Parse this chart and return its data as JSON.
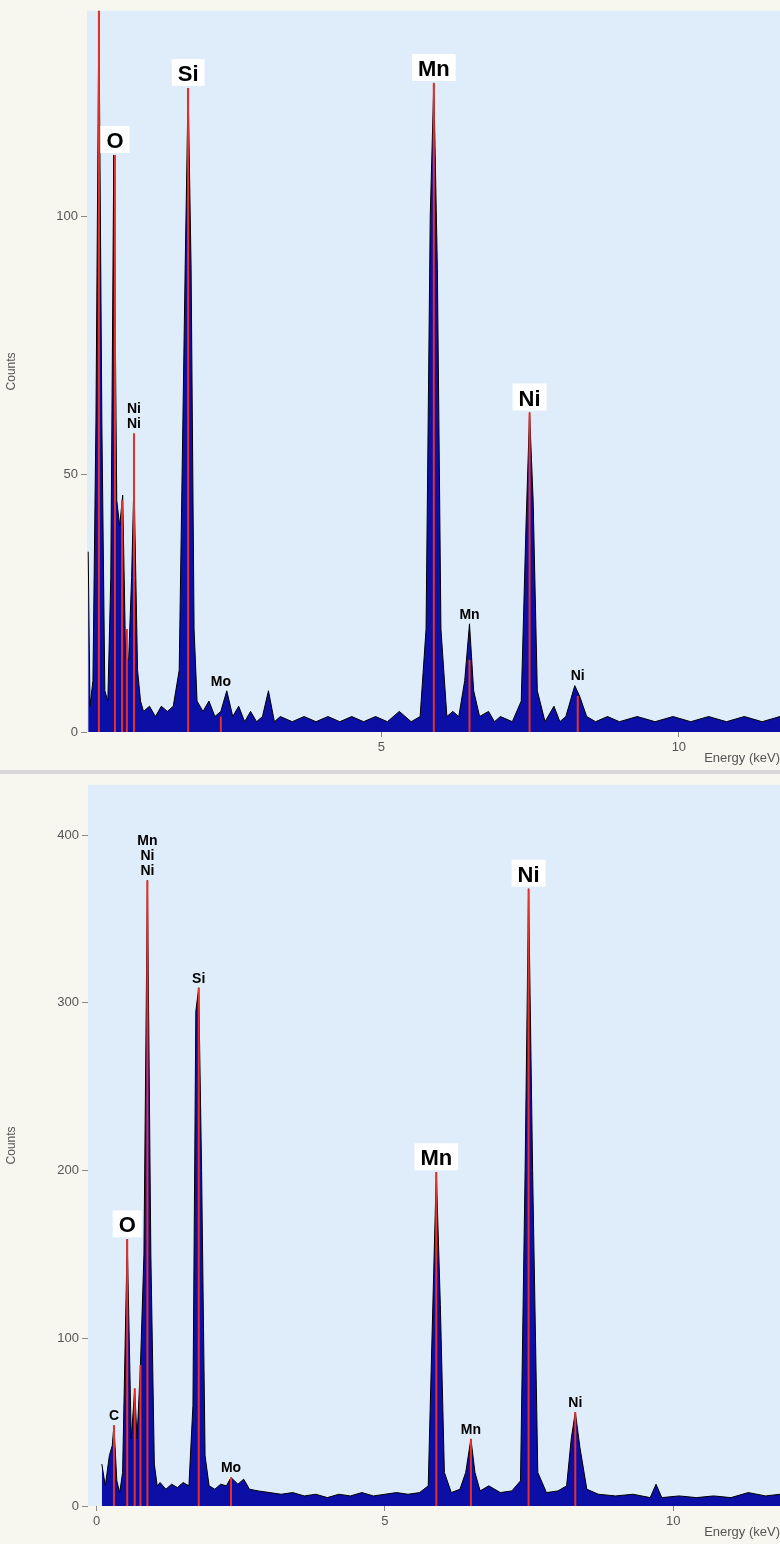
{
  "chart_data": [
    {
      "type": "area",
      "xlabel": "Energy (keV)",
      "ylabel": "Counts",
      "xlim": [
        0.05,
        11.7
      ],
      "ylim": [
        0,
        140
      ],
      "xticks": [
        5,
        10
      ],
      "yticks": [
        0,
        50,
        100
      ],
      "grid": false,
      "legend": false,
      "series": [
        {
          "color": "#0b0fa6",
          "x": [
            0.07,
            0.1,
            0.15,
            0.2,
            0.25,
            0.3,
            0.35,
            0.4,
            0.45,
            0.5,
            0.55,
            0.6,
            0.65,
            0.7,
            0.75,
            0.8,
            0.84,
            0.9,
            0.95,
            1.0,
            1.1,
            1.2,
            1.3,
            1.4,
            1.5,
            1.6,
            1.7,
            1.75,
            1.8,
            1.85,
            1.9,
            2.0,
            2.1,
            2.2,
            2.3,
            2.4,
            2.5,
            2.6,
            2.7,
            2.8,
            2.9,
            3.0,
            3.1,
            3.2,
            3.3,
            3.5,
            3.7,
            3.9,
            4.1,
            4.3,
            4.5,
            4.7,
            4.9,
            5.1,
            5.3,
            5.5,
            5.65,
            5.75,
            5.82,
            5.88,
            5.94,
            6.0,
            6.1,
            6.2,
            6.3,
            6.4,
            6.48,
            6.55,
            6.65,
            6.8,
            6.9,
            7.0,
            7.2,
            7.35,
            7.43,
            7.49,
            7.55,
            7.62,
            7.75,
            7.9,
            8.0,
            8.1,
            8.25,
            8.33,
            8.45,
            8.6,
            8.8,
            9.0,
            9.3,
            9.6,
            9.9,
            10.2,
            10.5,
            10.8,
            11.1,
            11.4,
            11.7
          ],
          "values": [
            35,
            5,
            10,
            60,
            140,
            60,
            8,
            6,
            30,
            112,
            45,
            40,
            46,
            14,
            14,
            30,
            49,
            12,
            6,
            4,
            5,
            3,
            5,
            4,
            5,
            12,
            90,
            125,
            90,
            20,
            6,
            4,
            6,
            3,
            4,
            8,
            3,
            5,
            2,
            4,
            2,
            3,
            8,
            2,
            3,
            2,
            3,
            2,
            3,
            2,
            3,
            2,
            3,
            2,
            4,
            2,
            3,
            20,
            100,
            126,
            90,
            20,
            3,
            4,
            3,
            10,
            21,
            8,
            3,
            4,
            2,
            3,
            2,
            6,
            40,
            62,
            45,
            8,
            2,
            5,
            2,
            3,
            9,
            7,
            3,
            2,
            3,
            2,
            3,
            2,
            3,
            2,
            3,
            2,
            3,
            2,
            3
          ]
        },
        {
          "type": "bar",
          "color": "#e8302a",
          "x": [
            0.25,
            0.52,
            0.64,
            0.72,
            0.84,
            1.75,
            2.3,
            5.88,
            6.48,
            7.49,
            8.3
          ],
          "values": [
            140,
            112,
            45,
            20,
            58,
            125,
            3,
            126,
            14,
            62,
            7
          ]
        }
      ],
      "annotations": [
        {
          "text": "O",
          "x": 0.52,
          "y": 112
        },
        {
          "text": "Ni\nNi",
          "x": 0.84,
          "y": 58
        },
        {
          "text": "Si",
          "x": 1.75,
          "y": 125
        },
        {
          "text": "Mo",
          "x": 2.3,
          "y": 3
        },
        {
          "text": "Mn",
          "x": 5.88,
          "y": 126
        },
        {
          "text": "Mn",
          "x": 6.48,
          "y": 14
        },
        {
          "text": "Ni",
          "x": 7.49,
          "y": 62
        },
        {
          "text": "Ni",
          "x": 8.3,
          "y": 7
        }
      ]
    },
    {
      "type": "area",
      "xlabel": "Energy (keV)",
      "ylabel": "Counts",
      "xlim": [
        -0.15,
        11.85
      ],
      "ylim": [
        0,
        430
      ],
      "xticks": [
        0,
        5,
        10
      ],
      "yticks": [
        0,
        100,
        200,
        300,
        400
      ],
      "grid": false,
      "legend": false,
      "series": [
        {
          "color": "#0b0fa6",
          "x": [
            0.09,
            0.15,
            0.22,
            0.27,
            0.3,
            0.35,
            0.4,
            0.45,
            0.53,
            0.6,
            0.66,
            0.7,
            0.76,
            0.82,
            0.88,
            0.94,
            1.0,
            1.05,
            1.1,
            1.2,
            1.3,
            1.4,
            1.5,
            1.6,
            1.67,
            1.72,
            1.77,
            1.82,
            1.88,
            1.95,
            2.05,
            2.15,
            2.25,
            2.33,
            2.45,
            2.55,
            2.65,
            2.8,
            3.0,
            3.2,
            3.4,
            3.6,
            3.8,
            4.0,
            4.2,
            4.4,
            4.6,
            4.8,
            5.0,
            5.2,
            5.4,
            5.6,
            5.75,
            5.8,
            5.89,
            5.96,
            6.03,
            6.15,
            6.3,
            6.4,
            6.49,
            6.56,
            6.65,
            6.8,
            7.0,
            7.2,
            7.35,
            7.43,
            7.49,
            7.56,
            7.65,
            7.8,
            8.0,
            8.15,
            8.23,
            8.3,
            8.38,
            8.5,
            8.7,
            9.0,
            9.3,
            9.6,
            9.7,
            9.8,
            10.1,
            10.4,
            10.7,
            11.0,
            11.3,
            11.6,
            11.85
          ],
          "values": [
            25,
            12,
            30,
            36,
            48,
            15,
            8,
            20,
            159,
            40,
            70,
            40,
            84,
            150,
            373,
            150,
            25,
            12,
            14,
            10,
            13,
            11,
            14,
            12,
            60,
            295,
            309,
            200,
            30,
            12,
            10,
            13,
            12,
            17,
            13,
            16,
            10,
            9,
            8,
            7,
            8,
            6,
            7,
            5,
            7,
            6,
            8,
            6,
            7,
            8,
            7,
            8,
            12,
            80,
            199,
            120,
            20,
            8,
            10,
            20,
            40,
            20,
            9,
            12,
            8,
            9,
            15,
            200,
            368,
            200,
            20,
            8,
            9,
            12,
            40,
            56,
            35,
            10,
            7,
            6,
            7,
            5,
            13,
            5,
            6,
            5,
            6,
            5,
            8,
            6,
            7
          ]
        },
        {
          "type": "bar",
          "color": "#e8302a",
          "x": [
            0.3,
            0.53,
            0.66,
            0.76,
            0.88,
            1.77,
            2.33,
            5.89,
            6.49,
            7.49,
            8.3
          ],
          "values": [
            48,
            159,
            70,
            84,
            373,
            309,
            17,
            199,
            40,
            368,
            56
          ]
        }
      ],
      "annotations": [
        {
          "text": "C",
          "x": 0.3,
          "y": 48
        },
        {
          "text": "O",
          "x": 0.53,
          "y": 159
        },
        {
          "text": "Mn\nNi\nNi",
          "x": 0.88,
          "y": 373
        },
        {
          "text": "Si",
          "x": 1.77,
          "y": 309
        },
        {
          "text": "Mo",
          "x": 2.33,
          "y": 17
        },
        {
          "text": "Mn",
          "x": 5.89,
          "y": 199
        },
        {
          "text": "Mn",
          "x": 6.49,
          "y": 40
        },
        {
          "text": "Ni",
          "x": 7.49,
          "y": 368
        },
        {
          "text": "Ni",
          "x": 8.3,
          "y": 56
        }
      ]
    }
  ]
}
